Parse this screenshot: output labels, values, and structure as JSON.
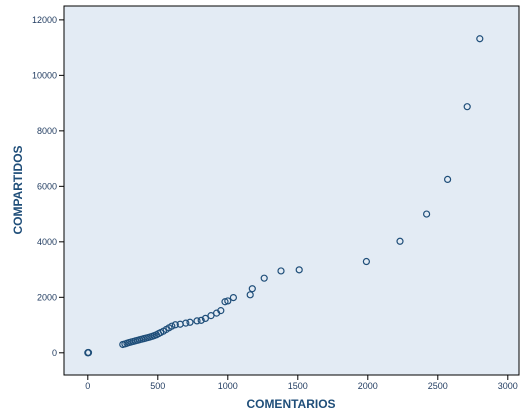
{
  "chart_data": {
    "type": "scatter",
    "xlabel": "COMENTARIOS",
    "ylabel": "COMPARTIDOS",
    "xlim": [
      -170,
      3080
    ],
    "ylim": [
      -800,
      12500
    ],
    "grid": false,
    "x_ticks": [
      0,
      500,
      1000,
      1500,
      2000,
      2500,
      3000
    ],
    "y_ticks": [
      0,
      2000,
      4000,
      6000,
      8000,
      10000,
      12000
    ],
    "colors": {
      "background": "#e3ebf4",
      "marker": "#1f4e79",
      "axis": "#000000"
    },
    "series": [
      {
        "points": [
          [
            0,
            0
          ],
          [
            3,
            10
          ],
          [
            5,
            5
          ],
          [
            2,
            8
          ],
          [
            250,
            300
          ],
          [
            265,
            320
          ],
          [
            280,
            345
          ],
          [
            295,
            370
          ],
          [
            310,
            390
          ],
          [
            325,
            410
          ],
          [
            340,
            430
          ],
          [
            355,
            450
          ],
          [
            370,
            470
          ],
          [
            385,
            490
          ],
          [
            400,
            510
          ],
          [
            415,
            530
          ],
          [
            430,
            550
          ],
          [
            445,
            570
          ],
          [
            460,
            595
          ],
          [
            475,
            620
          ],
          [
            490,
            650
          ],
          [
            505,
            690
          ],
          [
            520,
            730
          ],
          [
            540,
            780
          ],
          [
            560,
            840
          ],
          [
            580,
            900
          ],
          [
            600,
            960
          ],
          [
            625,
            1010
          ],
          [
            660,
            1030
          ],
          [
            700,
            1070
          ],
          [
            730,
            1100
          ],
          [
            780,
            1150
          ],
          [
            810,
            1170
          ],
          [
            840,
            1240
          ],
          [
            880,
            1340
          ],
          [
            920,
            1430
          ],
          [
            950,
            1520
          ],
          [
            980,
            1840
          ],
          [
            1000,
            1870
          ],
          [
            1040,
            1990
          ],
          [
            1160,
            2090
          ],
          [
            1175,
            2310
          ],
          [
            1260,
            2690
          ],
          [
            1380,
            2950
          ],
          [
            1510,
            2990
          ],
          [
            1990,
            3290
          ],
          [
            2230,
            4020
          ],
          [
            2420,
            5000
          ],
          [
            2570,
            6250
          ],
          [
            2710,
            8870
          ],
          [
            2800,
            11320
          ]
        ]
      }
    ]
  }
}
